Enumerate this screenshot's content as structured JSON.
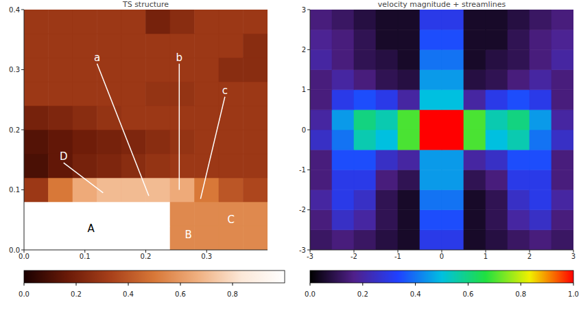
{
  "chart_data": [
    {
      "type": "heatmap",
      "title": "TS structure",
      "x": [
        0.02,
        0.06,
        0.1,
        0.14,
        0.18,
        0.22,
        0.26,
        0.3,
        0.34,
        0.38
      ],
      "y": [
        0.02,
        0.06,
        0.1,
        0.14,
        0.18,
        0.22,
        0.26,
        0.3,
        0.34,
        0.38
      ],
      "cells": [
        [
          1.0,
          1.0,
          1.0,
          1.0,
          1.0,
          1.0,
          0.55,
          0.55,
          0.55,
          0.55
        ],
        [
          1.0,
          1.0,
          1.0,
          1.0,
          1.0,
          1.0,
          0.55,
          0.55,
          0.55,
          0.55
        ],
        [
          0.3,
          0.5,
          0.65,
          0.7,
          0.7,
          0.7,
          0.65,
          0.5,
          0.4,
          0.35
        ],
        [
          0.1,
          0.15,
          0.2,
          0.22,
          0.25,
          0.28,
          0.3,
          0.3,
          0.3,
          0.3
        ],
        [
          0.12,
          0.15,
          0.18,
          0.2,
          0.22,
          0.25,
          0.28,
          0.3,
          0.3,
          0.3
        ],
        [
          0.2,
          0.22,
          0.25,
          0.28,
          0.3,
          0.3,
          0.3,
          0.3,
          0.3,
          0.3
        ],
        [
          0.3,
          0.3,
          0.3,
          0.3,
          0.3,
          0.28,
          0.28,
          0.3,
          0.3,
          0.3
        ],
        [
          0.3,
          0.3,
          0.3,
          0.3,
          0.3,
          0.3,
          0.3,
          0.3,
          0.25,
          0.25
        ],
        [
          0.3,
          0.3,
          0.3,
          0.3,
          0.3,
          0.3,
          0.3,
          0.3,
          0.3,
          0.25
        ],
        [
          0.3,
          0.3,
          0.3,
          0.3,
          0.3,
          0.2,
          0.25,
          0.3,
          0.3,
          0.3
        ]
      ],
      "xlim": [
        0,
        0.4
      ],
      "ylim": [
        0,
        0.4
      ],
      "xticks": [
        {
          "value": 0,
          "label": "0.0"
        },
        {
          "value": 0.1,
          "label": "0.1"
        },
        {
          "value": 0.2,
          "label": "0.2"
        },
        {
          "value": 0.3,
          "label": "0.3"
        }
      ],
      "yticks": [
        {
          "value": 0,
          "label": "0.0"
        },
        {
          "value": 0.1,
          "label": "0.1"
        },
        {
          "value": 0.2,
          "label": "0.2"
        },
        {
          "value": 0.3,
          "label": "0.3"
        },
        {
          "value": 0.4,
          "label": "0.4"
        }
      ],
      "colorbar": {
        "range": [
          0,
          1
        ],
        "ticks": [
          {
            "value": 0,
            "label": "0.0"
          },
          {
            "value": 0.2,
            "label": "0.2"
          },
          {
            "value": 0.4,
            "label": "0.4"
          },
          {
            "value": 0.6,
            "label": "0.6"
          },
          {
            "value": 0.8,
            "label": "0.8"
          }
        ],
        "colors": [
          "#1a0000",
          "#6a1a08",
          "#a8401a",
          "#d87838",
          "#f0b080",
          "#fce8d8",
          "#ffffff"
        ]
      },
      "annotations": [
        {
          "text": "a",
          "x": 0.12,
          "y": 0.31,
          "point": [
            0.205,
            0.09
          ],
          "color": "#ffffff"
        },
        {
          "text": "b",
          "x": 0.255,
          "y": 0.31,
          "point": [
            0.255,
            0.1
          ],
          "color": "#ffffff"
        },
        {
          "text": "c",
          "x": 0.33,
          "y": 0.255,
          "point": [
            0.29,
            0.085
          ],
          "color": "#ffffff"
        },
        {
          "text": "D",
          "x": 0.065,
          "y": 0.145,
          "point": [
            0.13,
            0.095
          ],
          "color": "#ffffff"
        },
        {
          "text": "A",
          "x": 0.11,
          "y": 0.035,
          "color": "#000000"
        },
        {
          "text": "B",
          "x": 0.27,
          "y": 0.025,
          "color": "#ffffff"
        },
        {
          "text": "C",
          "x": 0.34,
          "y": 0.05,
          "color": "#ffffff"
        }
      ]
    },
    {
      "type": "heatmap",
      "title": "velocity magnitude + streamlines",
      "x": [
        -2.75,
        -2.25,
        -1.75,
        -1.25,
        -0.75,
        -0.25,
        0.25,
        0.75,
        1.25,
        1.75,
        2.25,
        2.75
      ],
      "y": [
        -2.75,
        -2.25,
        -1.75,
        -1.25,
        -0.75,
        -0.25,
        0.25,
        0.75,
        1.25,
        1.75,
        2.25,
        2.75
      ],
      "cells": [
        [
          0.12,
          0.15,
          0.12,
          0.08,
          0.05,
          0.3,
          0.3,
          0.05,
          0.08,
          0.12,
          0.15,
          0.12
        ],
        [
          0.15,
          0.25,
          0.2,
          0.1,
          0.05,
          0.35,
          0.35,
          0.05,
          0.1,
          0.2,
          0.25,
          0.15
        ],
        [
          0.2,
          0.3,
          0.25,
          0.1,
          0.05,
          0.4,
          0.4,
          0.05,
          0.1,
          0.25,
          0.3,
          0.2
        ],
        [
          0.15,
          0.3,
          0.3,
          0.15,
          0.1,
          0.45,
          0.45,
          0.1,
          0.15,
          0.3,
          0.3,
          0.15
        ],
        [
          0.15,
          0.35,
          0.35,
          0.25,
          0.2,
          0.45,
          0.45,
          0.2,
          0.25,
          0.35,
          0.35,
          0.15
        ],
        [
          0.25,
          0.4,
          0.55,
          0.5,
          0.7,
          1.0,
          1.0,
          0.7,
          0.5,
          0.55,
          0.4,
          0.25
        ],
        [
          0.2,
          0.45,
          0.6,
          0.55,
          0.7,
          1.0,
          1.0,
          0.7,
          0.55,
          0.6,
          0.45,
          0.2
        ],
        [
          0.15,
          0.3,
          0.35,
          0.3,
          0.2,
          0.5,
          0.5,
          0.2,
          0.3,
          0.35,
          0.3,
          0.15
        ],
        [
          0.15,
          0.2,
          0.15,
          0.1,
          0.08,
          0.45,
          0.45,
          0.08,
          0.1,
          0.15,
          0.2,
          0.15
        ],
        [
          0.2,
          0.15,
          0.1,
          0.08,
          0.05,
          0.4,
          0.4,
          0.05,
          0.08,
          0.1,
          0.15,
          0.2
        ],
        [
          0.18,
          0.15,
          0.1,
          0.05,
          0.05,
          0.35,
          0.35,
          0.05,
          0.05,
          0.1,
          0.15,
          0.18
        ],
        [
          0.15,
          0.12,
          0.08,
          0.05,
          0.05,
          0.3,
          0.3,
          0.05,
          0.05,
          0.08,
          0.12,
          0.15
        ]
      ],
      "xlim": [
        -3,
        3
      ],
      "ylim": [
        -3,
        3
      ],
      "xticks": [
        -3,
        -2,
        -1,
        0,
        1,
        2,
        3
      ],
      "yticks": [
        -3,
        -2,
        -1,
        0,
        1,
        2,
        3
      ],
      "colorbar": {
        "range": [
          0,
          1
        ],
        "ticks": [
          {
            "value": 0,
            "label": "0.0"
          },
          {
            "value": 0.2,
            "label": "0.2"
          },
          {
            "value": 0.4,
            "label": "0.4"
          },
          {
            "value": 0.6,
            "label": "0.6"
          },
          {
            "value": 0.8,
            "label": "0.8"
          },
          {
            "value": 1,
            "label": "1.0"
          }
        ],
        "colors": [
          "#000000",
          "#50208a",
          "#2040ff",
          "#00c0e0",
          "#20e040",
          "#f0f000",
          "#ff0000"
        ]
      },
      "annotations": []
    }
  ]
}
